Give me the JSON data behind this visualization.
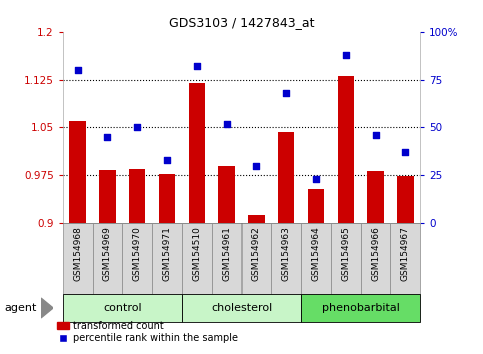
{
  "title": "GDS3103 / 1427843_at",
  "samples": [
    "GSM154968",
    "GSM154969",
    "GSM154970",
    "GSM154971",
    "GSM154510",
    "GSM154961",
    "GSM154962",
    "GSM154963",
    "GSM154964",
    "GSM154965",
    "GSM154966",
    "GSM154967"
  ],
  "transformed_count": [
    1.06,
    0.983,
    0.985,
    0.977,
    1.12,
    0.99,
    0.912,
    1.043,
    0.953,
    1.13,
    0.982,
    0.974
  ],
  "percentile_rank": [
    80,
    45,
    50,
    33,
    82,
    52,
    30,
    68,
    23,
    88,
    46,
    37
  ],
  "groups": [
    {
      "label": "control",
      "start": 0,
      "end": 3,
      "color": "#c8f5c8"
    },
    {
      "label": "cholesterol",
      "start": 4,
      "end": 7,
      "color": "#c8f5c8"
    },
    {
      "label": "phenobarbital",
      "start": 8,
      "end": 11,
      "color": "#66dd66"
    }
  ],
  "bar_color": "#cc0000",
  "dot_color": "#0000cc",
  "left_ylim": [
    0.9,
    1.2
  ],
  "right_ylim": [
    0,
    100
  ],
  "left_yticks": [
    0.9,
    0.975,
    1.05,
    1.125,
    1.2
  ],
  "right_yticks": [
    0,
    25,
    50,
    75,
    100
  ],
  "left_ytick_labels": [
    "0.9",
    "0.975",
    "1.05",
    "1.125",
    "1.2"
  ],
  "right_ytick_labels": [
    "0",
    "25",
    "50",
    "75",
    "100%"
  ],
  "hlines": [
    0.975,
    1.05,
    1.125
  ],
  "agent_label": "agent",
  "legend_bar_label": "transformed count",
  "legend_dot_label": "percentile rank within the sample",
  "bar_width": 0.55,
  "sample_cell_color": "#d8d8d8",
  "sample_cell_border": "#888888"
}
